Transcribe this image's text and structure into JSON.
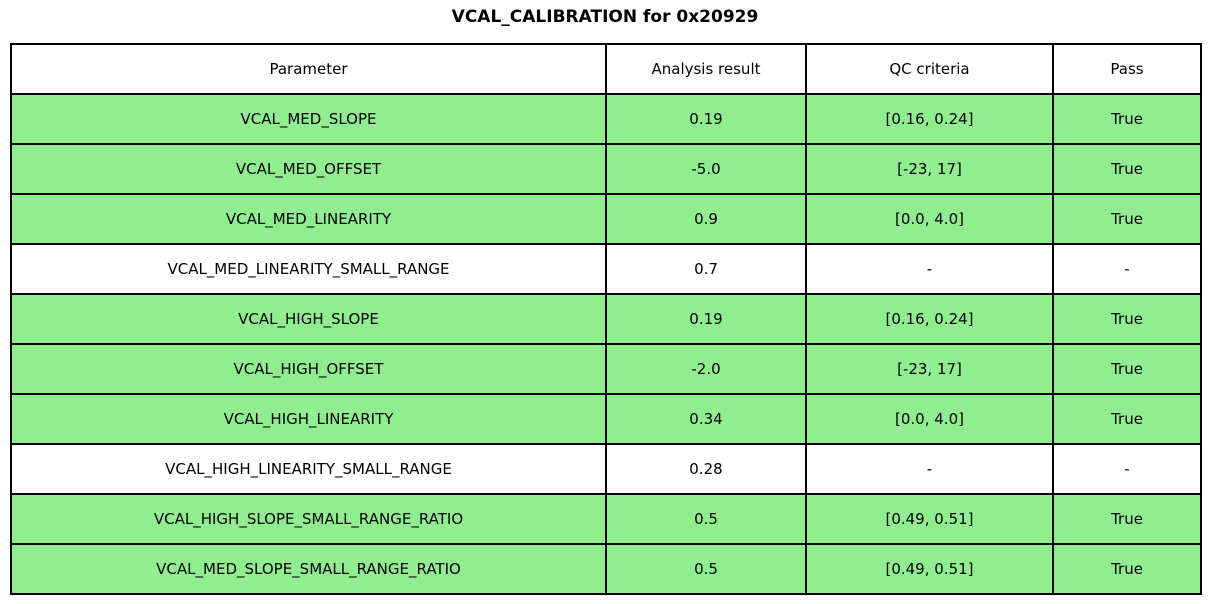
{
  "title": "VCAL_CALIBRATION for 0x20929",
  "colors": {
    "pass_row": "#90EE90",
    "border": "#000000",
    "background": "#ffffff",
    "text": "#000000"
  },
  "table": {
    "headers": [
      "Parameter",
      "Analysis result",
      "QC criteria",
      "Pass"
    ],
    "rows": [
      {
        "parameter": "VCAL_MED_SLOPE",
        "result": "0.19",
        "criteria": "[0.16, 0.24]",
        "pass": "True",
        "highlighted": true
      },
      {
        "parameter": "VCAL_MED_OFFSET",
        "result": "-5.0",
        "criteria": "[-23, 17]",
        "pass": "True",
        "highlighted": true
      },
      {
        "parameter": "VCAL_MED_LINEARITY",
        "result": "0.9",
        "criteria": "[0.0, 4.0]",
        "pass": "True",
        "highlighted": true
      },
      {
        "parameter": "VCAL_MED_LINEARITY_SMALL_RANGE",
        "result": "0.7",
        "criteria": "-",
        "pass": "-",
        "highlighted": false
      },
      {
        "parameter": "VCAL_HIGH_SLOPE",
        "result": "0.19",
        "criteria": "[0.16, 0.24]",
        "pass": "True",
        "highlighted": true
      },
      {
        "parameter": "VCAL_HIGH_OFFSET",
        "result": "-2.0",
        "criteria": "[-23, 17]",
        "pass": "True",
        "highlighted": true
      },
      {
        "parameter": "VCAL_HIGH_LINEARITY",
        "result": "0.34",
        "criteria": "[0.0, 4.0]",
        "pass": "True",
        "highlighted": true
      },
      {
        "parameter": "VCAL_HIGH_LINEARITY_SMALL_RANGE",
        "result": "0.28",
        "criteria": "-",
        "pass": "-",
        "highlighted": false
      },
      {
        "parameter": "VCAL_HIGH_SLOPE_SMALL_RANGE_RATIO",
        "result": "0.5",
        "criteria": "[0.49, 0.51]",
        "pass": "True",
        "highlighted": true
      },
      {
        "parameter": "VCAL_MED_SLOPE_SMALL_RANGE_RATIO",
        "result": "0.5",
        "criteria": "[0.49, 0.51]",
        "pass": "True",
        "highlighted": true
      }
    ]
  },
  "chart_data": {
    "type": "table",
    "title": "VCAL_CALIBRATION for 0x20929",
    "columns": [
      "Parameter",
      "Analysis result",
      "QC criteria",
      "Pass"
    ],
    "rows": [
      [
        "VCAL_MED_SLOPE",
        "0.19",
        "[0.16, 0.24]",
        "True"
      ],
      [
        "VCAL_MED_OFFSET",
        "-5.0",
        "[-23, 17]",
        "True"
      ],
      [
        "VCAL_MED_LINEARITY",
        "0.9",
        "[0.0, 4.0]",
        "True"
      ],
      [
        "VCAL_MED_LINEARITY_SMALL_RANGE",
        "0.7",
        "-",
        "-"
      ],
      [
        "VCAL_HIGH_SLOPE",
        "0.19",
        "[0.16, 0.24]",
        "True"
      ],
      [
        "VCAL_HIGH_OFFSET",
        "-2.0",
        "[-23, 17]",
        "True"
      ],
      [
        "VCAL_HIGH_LINEARITY",
        "0.34",
        "[0.0, 4.0]",
        "True"
      ],
      [
        "VCAL_HIGH_LINEARITY_SMALL_RANGE",
        "0.28",
        "-",
        "-"
      ],
      [
        "VCAL_HIGH_SLOPE_SMALL_RANGE_RATIO",
        "0.5",
        "[0.49, 0.51]",
        "True"
      ],
      [
        "VCAL_MED_SLOPE_SMALL_RANGE_RATIO",
        "0.5",
        "[0.49, 0.51]",
        "True"
      ]
    ],
    "row_highlight_color": "#90EE90",
    "layout": {
      "grid": true,
      "border_color": "#000000",
      "title_position": "top-center"
    }
  }
}
